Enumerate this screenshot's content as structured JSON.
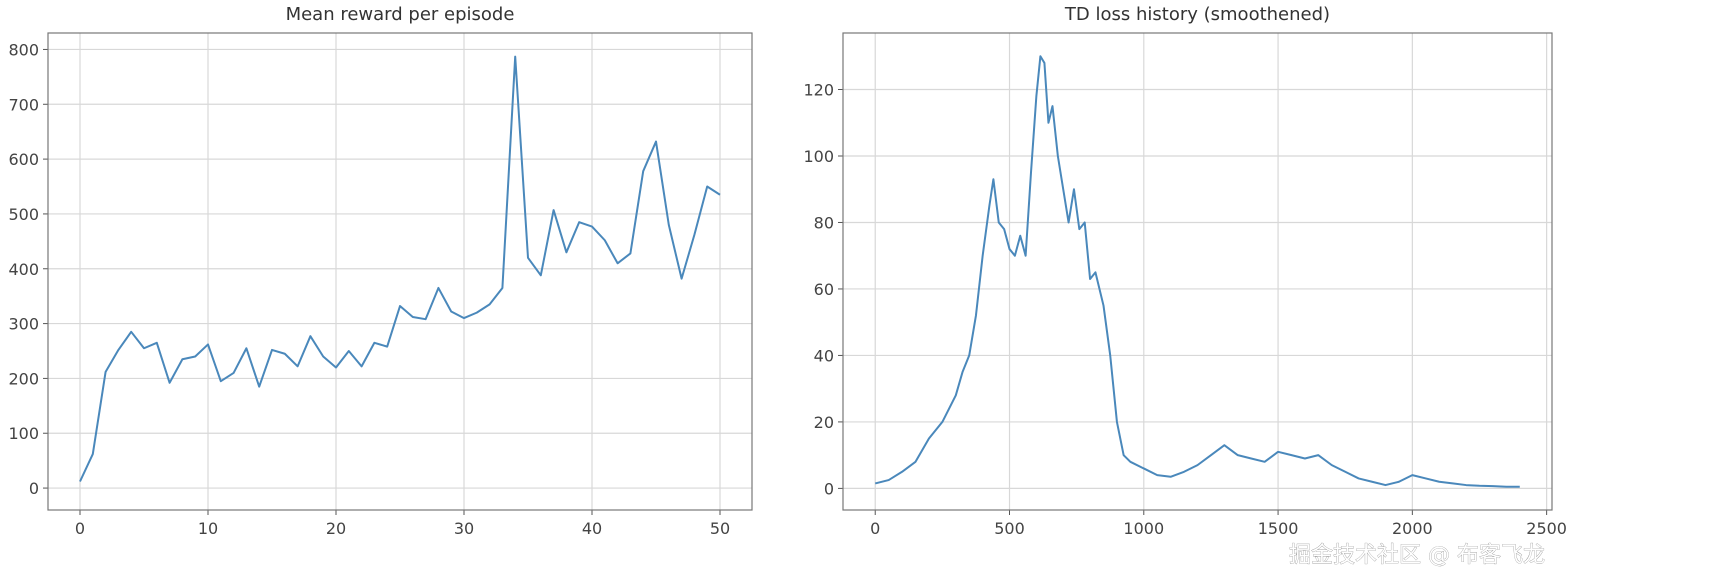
{
  "chart_data": [
    {
      "type": "line",
      "title": "Mean reward per episode",
      "color": "#4a88bb",
      "grid": true,
      "x": [
        0,
        1,
        2,
        3,
        4,
        5,
        6,
        7,
        8,
        9,
        10,
        11,
        12,
        13,
        14,
        15,
        16,
        17,
        18,
        19,
        20,
        21,
        22,
        23,
        24,
        25,
        26,
        27,
        28,
        29,
        30,
        31,
        32,
        33,
        34,
        35,
        36,
        37,
        38,
        39,
        40,
        41,
        42,
        43,
        44,
        45,
        46,
        47,
        48,
        49,
        50
      ],
      "values": [
        12,
        62,
        212,
        252,
        285,
        255,
        265,
        192,
        235,
        240,
        262,
        195,
        210,
        255,
        185,
        252,
        245,
        222,
        277,
        240,
        220,
        250,
        222,
        265,
        258,
        332,
        312,
        308,
        365,
        322,
        310,
        320,
        335,
        365,
        787,
        420,
        388,
        507,
        430,
        485,
        477,
        452,
        410,
        428,
        578,
        632,
        480,
        382,
        462,
        550,
        535
      ],
      "xlim": [
        -2.5,
        52.5
      ],
      "ylim": [
        -40,
        830
      ],
      "xticks": [
        0,
        10,
        20,
        30,
        40,
        50
      ],
      "yticks": [
        0,
        100,
        200,
        300,
        400,
        500,
        600,
        700,
        800
      ]
    },
    {
      "type": "line",
      "title": "TD loss history (smoothened)",
      "color": "#4a88bb",
      "grid": true,
      "x": [
        0,
        50,
        100,
        150,
        200,
        250,
        300,
        325,
        350,
        375,
        400,
        425,
        440,
        460,
        480,
        500,
        520,
        540,
        560,
        580,
        600,
        615,
        630,
        645,
        660,
        680,
        700,
        720,
        740,
        760,
        780,
        800,
        820,
        850,
        875,
        900,
        925,
        950,
        1000,
        1050,
        1100,
        1150,
        1200,
        1250,
        1300,
        1350,
        1400,
        1450,
        1500,
        1550,
        1600,
        1650,
        1700,
        1750,
        1800,
        1850,
        1900,
        1950,
        2000,
        2050,
        2100,
        2150,
        2200,
        2250,
        2300,
        2350,
        2400
      ],
      "values": [
        1.5,
        2.5,
        5,
        8,
        15,
        20,
        28,
        35,
        40,
        52,
        70,
        85,
        93,
        80,
        78,
        72,
        70,
        76,
        70,
        95,
        118,
        130,
        128,
        110,
        115,
        100,
        90,
        80,
        90,
        78,
        80,
        63,
        65,
        55,
        40,
        20,
        10,
        8,
        6,
        4,
        3.5,
        5,
        7,
        10,
        13,
        10,
        9,
        8,
        11,
        10,
        9,
        10,
        7,
        5,
        3,
        2,
        1,
        2,
        4,
        3,
        2,
        1.5,
        1,
        0.8,
        0.7,
        0.5,
        0.5
      ],
      "xlim": [
        -120,
        2520
      ],
      "ylim": [
        -6.5,
        137
      ],
      "xticks": [
        0,
        500,
        1000,
        1500,
        2000,
        2500
      ],
      "yticks": [
        0,
        20,
        40,
        60,
        80,
        100,
        120
      ]
    }
  ],
  "watermark": "掘金技术社区 @ 布客飞龙"
}
